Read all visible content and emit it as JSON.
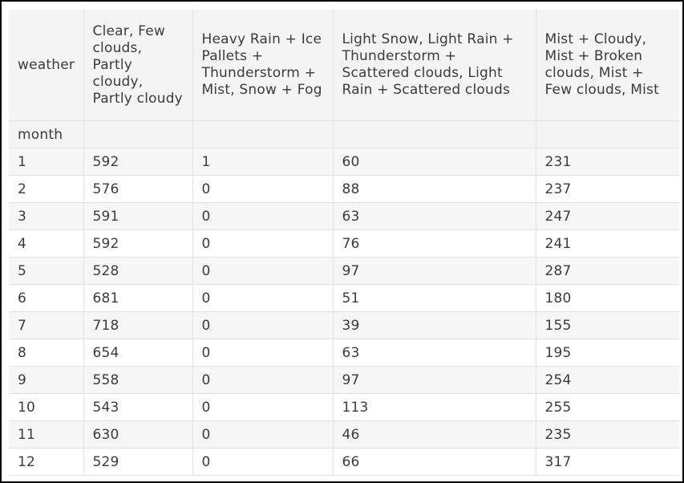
{
  "table": {
    "columns_name": "weather",
    "index_name": "month",
    "columns": [
      "Clear, Few clouds, Partly cloudy, Partly cloudy",
      "Heavy Rain + Ice Pallets + Thunderstorm + Mist, Snow + Fog",
      "Light Snow, Light Rain + Thunderstorm + Scattered clouds, Light Rain + Scattered clouds",
      "Mist + Cloudy, Mist + Broken clouds, Mist + Few clouds, Mist"
    ],
    "rows": [
      {
        "month": "1",
        "values": [
          "592",
          "1",
          "60",
          "231"
        ]
      },
      {
        "month": "2",
        "values": [
          "576",
          "0",
          "88",
          "237"
        ]
      },
      {
        "month": "3",
        "values": [
          "591",
          "0",
          "63",
          "247"
        ]
      },
      {
        "month": "4",
        "values": [
          "592",
          "0",
          "76",
          "241"
        ]
      },
      {
        "month": "5",
        "values": [
          "528",
          "0",
          "97",
          "287"
        ]
      },
      {
        "month": "6",
        "values": [
          "681",
          "0",
          "51",
          "180"
        ]
      },
      {
        "month": "7",
        "values": [
          "718",
          "0",
          "39",
          "155"
        ]
      },
      {
        "month": "8",
        "values": [
          "654",
          "0",
          "63",
          "195"
        ]
      },
      {
        "month": "9",
        "values": [
          "558",
          "0",
          "97",
          "254"
        ]
      },
      {
        "month": "10",
        "values": [
          "543",
          "0",
          "113",
          "255"
        ]
      },
      {
        "month": "11",
        "values": [
          "630",
          "0",
          "46",
          "235"
        ]
      },
      {
        "month": "12",
        "values": [
          "529",
          "0",
          "66",
          "317"
        ]
      }
    ]
  }
}
